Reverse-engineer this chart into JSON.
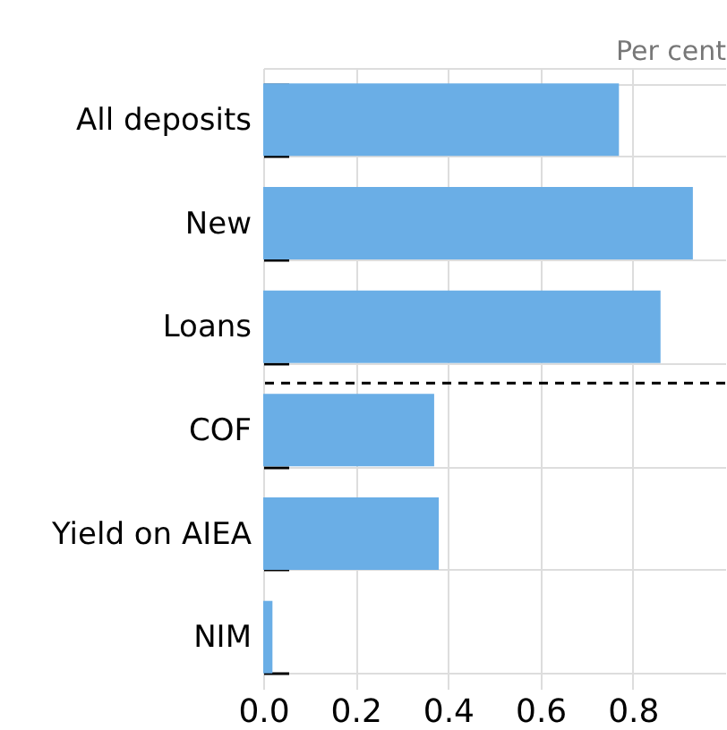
{
  "chart_data": {
    "type": "bar",
    "orientation": "horizontal",
    "xlabel": "Per cent",
    "categories": [
      "All deposits",
      "New",
      "Loans",
      "COF",
      "Yield on AIEA",
      "NIM"
    ],
    "values": [
      0.77,
      0.93,
      0.86,
      0.37,
      0.38,
      0.02
    ],
    "color": "#6aaee6",
    "xlim": [
      0,
      1.0
    ],
    "xticks": [
      {
        "value": 0,
        "label": "0.0"
      },
      0.2,
      0.4,
      0.6,
      0.8
    ],
    "grid": true,
    "ref_lines": [
      {
        "axis": "y",
        "value": "COF",
        "line_style": "dashed",
        "color": "#000000"
      }
    ]
  }
}
